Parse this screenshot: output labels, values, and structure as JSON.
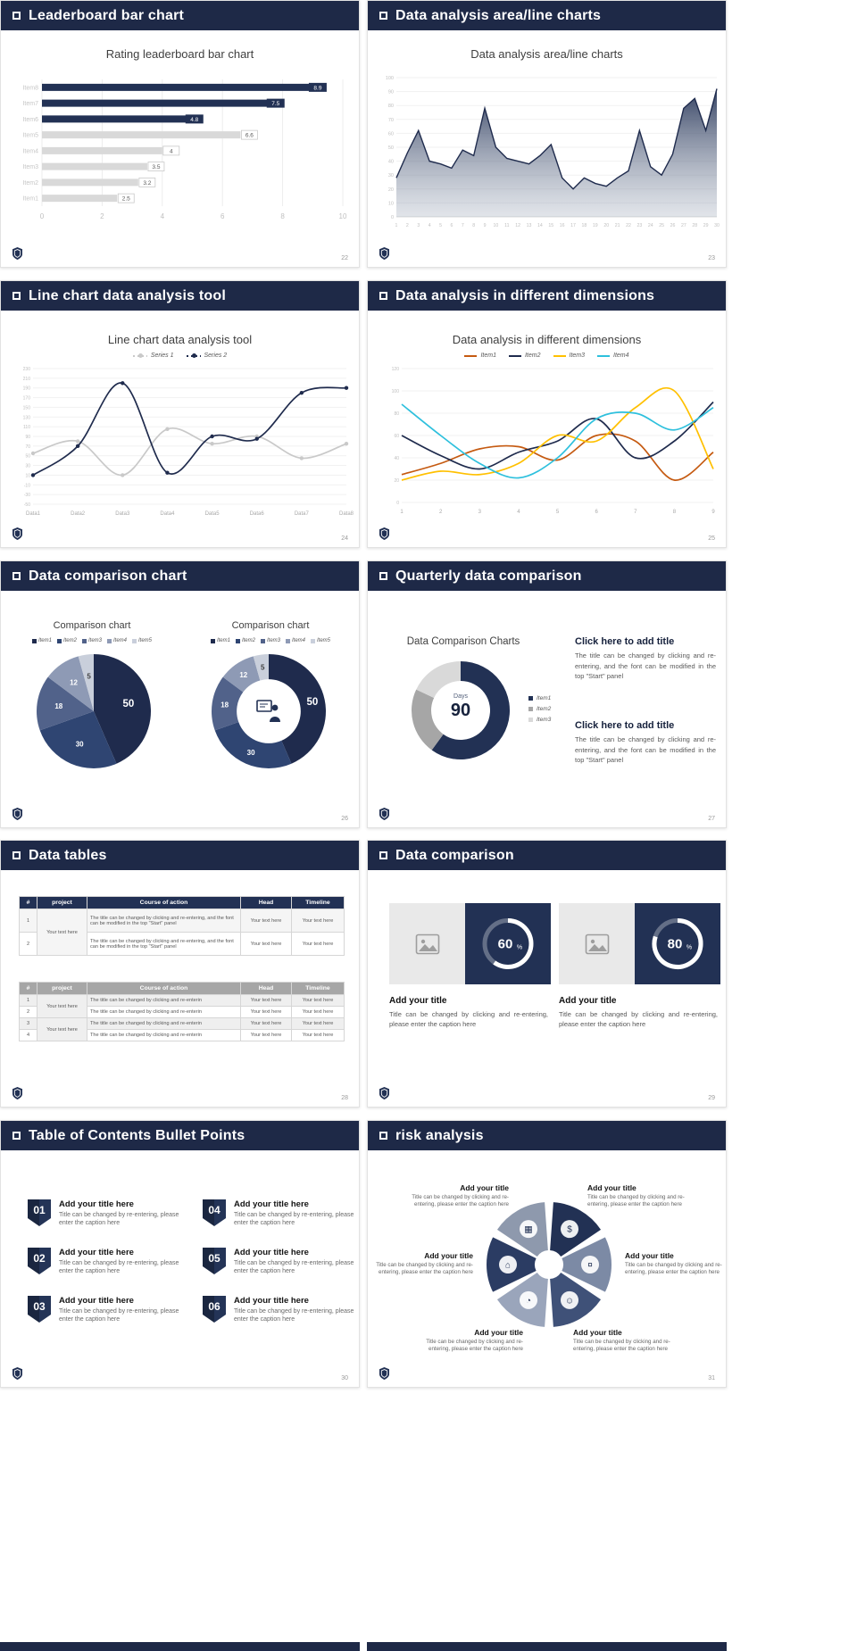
{
  "colors": {
    "header_navy": "#1e2947",
    "navy": "#223154",
    "gray_bar": "#d9d9d9"
  },
  "slides": [
    {
      "header": "Leaderboard bar chart",
      "page": "22",
      "title": "Rating leaderboard bar chart"
    },
    {
      "header": "Data analysis area/line charts",
      "page": "23",
      "title": "Data analysis area/line charts"
    },
    {
      "header": "Line chart data analysis tool",
      "page": "24",
      "title": "Line chart data analysis tool"
    },
    {
      "header": "Data analysis in different dimensions",
      "page": "25",
      "title": "Data analysis in different dimensions"
    },
    {
      "header": "Data comparison chart",
      "page": "26",
      "pie_title": "Comparison chart",
      "donut_title": "Comparison chart"
    },
    {
      "header": "Quarterly data comparison",
      "page": "27",
      "title": "Data Comparison Charts",
      "days_label": "Days",
      "days_value": "90",
      "blocks": [
        {
          "heading": "Click here to add title",
          "body": "The title can be changed by clicking and re-entering, and the font can be modified in the top \"Start\" panel"
        },
        {
          "heading": "Click here to add title",
          "body": "The title can be changed by clicking and re-entering, and the font can be modified in the top \"Start\" panel"
        }
      ]
    },
    {
      "header": "Data tables",
      "page": "28",
      "t1": {
        "headers": [
          "#",
          "project",
          "Course of action",
          "Head",
          "Timeline"
        ],
        "project": "Your text here",
        "rows": [
          {
            "num": "1",
            "course": "The title can be changed by clicking and re-entering, and the font can be modified in the top \"Start\" panel",
            "head": "Your text here",
            "timeline": "Your text here"
          },
          {
            "num": "2",
            "course": "The title can be changed by clicking and re-entering, and the font can be modified in the top \"Start\" panel",
            "head": "Your text here",
            "timeline": "Your text here"
          }
        ]
      },
      "t2": {
        "headers": [
          "#",
          "project",
          "Course of action",
          "Head",
          "Timeline"
        ],
        "projects": [
          "Your text here",
          "Your text here"
        ],
        "rows": [
          {
            "num": "1",
            "course": "The title can be changed by clicking and re-enterin",
            "head": "Your text here",
            "timeline": "Your text here"
          },
          {
            "num": "2",
            "course": "The title can be changed by clicking and re-enterin",
            "head": "Your text here",
            "timeline": "Your text here"
          },
          {
            "num": "3",
            "course": "The title can be changed by clicking and re-enterin",
            "head": "Your text here",
            "timeline": "Your text here"
          },
          {
            "num": "4",
            "course": "The title can be changed by clicking and re-enterin",
            "head": "Your text here",
            "timeline": "Your text here"
          }
        ]
      }
    },
    {
      "header": "Data comparison",
      "page": "29",
      "cards": [
        {
          "title": "Add your title",
          "caption": "Title can be changed by clicking and re-entering, please enter the caption here"
        },
        {
          "title": "Add your title",
          "caption": "Title can be changed by clicking and re-entering, please enter the caption here"
        }
      ]
    },
    {
      "header": "Table of Contents Bullet Points",
      "page": "30",
      "items": [
        {
          "num": "01",
          "title": "Add your title here",
          "caption": "Title can be changed by re-entering, please enter the caption here"
        },
        {
          "num": "02",
          "title": "Add your title here",
          "caption": "Title can be changed by re-entering, please enter the caption here"
        },
        {
          "num": "03",
          "title": "Add your title here",
          "caption": "Title can be changed by re-entering, please enter the caption here"
        },
        {
          "num": "04",
          "title": "Add your title here",
          "caption": "Title can be changed by re-entering, please enter the caption here"
        },
        {
          "num": "05",
          "title": "Add your title here",
          "caption": "Title can be changed by re-entering, please enter the caption here"
        },
        {
          "num": "06",
          "title": "Add your title here",
          "caption": "Title can be changed by re-entering, please enter the caption here"
        }
      ]
    },
    {
      "header": "risk analysis",
      "page": "31",
      "blocks": [
        {
          "title": "Add your title",
          "caption": "Title can be changed by clicking and re-entering, please enter the caption here"
        },
        {
          "title": "Add your title",
          "caption": "Title can be changed by clicking and re-entering, please enter the caption here"
        },
        {
          "title": "Add your title",
          "caption": "Title can be changed by clicking and re-entering, please enter the caption here"
        },
        {
          "title": "Add your title",
          "caption": "Title can be changed by clicking and re-entering, please enter the caption here"
        },
        {
          "title": "Add your title",
          "caption": "Title can be changed by clicking and re-entering, please enter the caption here"
        },
        {
          "title": "Add your title",
          "caption": "Title can be changed by clicking and re-entering, please enter the caption here"
        }
      ]
    }
  ],
  "chart_data": [
    {
      "id": "leaderboard",
      "type": "bar",
      "orientation": "horizontal",
      "title": "Rating leaderboard bar chart",
      "categories": [
        "Item8",
        "Item7",
        "Item6",
        "Item5",
        "Item4",
        "Item3",
        "Item2",
        "Item1"
      ],
      "values": [
        8.9,
        7.5,
        4.8,
        6.6,
        4,
        3.5,
        3.2,
        2.5
      ],
      "bar_styles": [
        "navy",
        "navy",
        "navy",
        "gray",
        "gray",
        "gray",
        "gray",
        "gray"
      ],
      "navy_color": "#223154",
      "gray_color": "#d9d9d9",
      "xlim": [
        0,
        10
      ],
      "xticks": [
        0,
        2,
        4,
        6,
        8,
        10
      ]
    },
    {
      "id": "area",
      "type": "area",
      "title": "Data analysis area/line charts",
      "x": [
        1,
        2,
        3,
        4,
        5,
        6,
        7,
        8,
        9,
        10,
        11,
        12,
        13,
        14,
        15,
        16,
        17,
        18,
        19,
        20,
        21,
        22,
        23,
        24,
        25,
        26,
        27,
        28,
        29,
        30
      ],
      "values": [
        28,
        46,
        62,
        40,
        38,
        35,
        48,
        44,
        78,
        50,
        42,
        40,
        38,
        44,
        52,
        28,
        20,
        28,
        24,
        22,
        28,
        33,
        62,
        36,
        30,
        45,
        78,
        85,
        62,
        92
      ],
      "ylim": [
        0,
        100
      ],
      "ytick_step": 10,
      "line_color": "#1f2b4d",
      "fill_top": "#223154",
      "fill_bottom": "#aab3c2"
    },
    {
      "id": "linetool",
      "type": "line",
      "title": "Line chart data analysis tool",
      "markers": true,
      "categories": [
        "Data1",
        "Data2",
        "Data3",
        "Data4",
        "Data5",
        "Data6",
        "Data7",
        "Data8"
      ],
      "ylim": [
        -50,
        230
      ],
      "ytick_step": 20,
      "series": [
        {
          "name": "Series 1",
          "color": "#c9c9c9",
          "values": [
            55,
            80,
            10,
            105,
            75,
            90,
            45,
            75
          ]
        },
        {
          "name": "Series 2",
          "color": "#1f2b4d",
          "values": [
            10,
            70,
            200,
            15,
            90,
            85,
            180,
            190
          ]
        }
      ]
    },
    {
      "id": "dimensions",
      "type": "line",
      "title": "Data analysis in different dimensions",
      "markers": false,
      "x": [
        1,
        2,
        3,
        4,
        5,
        6,
        7,
        8,
        9
      ],
      "ylim": [
        0,
        120
      ],
      "ytick_step": 20,
      "series": [
        {
          "name": "Item1",
          "color": "#c55a11",
          "values": [
            25,
            35,
            48,
            50,
            38,
            60,
            55,
            20,
            45
          ]
        },
        {
          "name": "Item2",
          "color": "#1f2b4d",
          "values": [
            60,
            42,
            30,
            45,
            55,
            75,
            40,
            55,
            90
          ]
        },
        {
          "name": "Item3",
          "color": "#ffc000",
          "values": [
            20,
            28,
            25,
            35,
            60,
            55,
            85,
            100,
            30
          ]
        },
        {
          "name": "Item4",
          "color": "#2ec0dd",
          "values": [
            88,
            60,
            35,
            22,
            40,
            75,
            80,
            65,
            85
          ]
        }
      ]
    },
    {
      "id": "pie5",
      "type": "pie",
      "title": "Comparison chart",
      "legend": [
        "Item1",
        "Item2",
        "Item3",
        "Item4",
        "Item5"
      ],
      "values": [
        50,
        30,
        18,
        12,
        5
      ],
      "colors": [
        "#1f2b4d",
        "#2f4572",
        "#51628a",
        "#8e9ab5",
        "#c9cfdb"
      ],
      "label_colors": [
        "#ffffff",
        "#ffffff",
        "#ffffff",
        "#ffffff",
        "#404040"
      ],
      "show_labels": true
    },
    {
      "id": "donut5",
      "type": "pie",
      "title": "Comparison chart",
      "legend": [
        "Item1",
        "Item2",
        "Item3",
        "Item4",
        "Item5"
      ],
      "values": [
        50,
        30,
        18,
        12,
        5
      ],
      "colors": [
        "#1f2b4d",
        "#2f4572",
        "#51628a",
        "#8e9ab5",
        "#c9cfdb"
      ],
      "label_colors": [
        "#ffffff",
        "#ffffff",
        "#ffffff",
        "#ffffff",
        "#404040"
      ],
      "inner": 0.56,
      "show_labels": true,
      "center_icon": true
    },
    {
      "id": "donut90",
      "type": "pie",
      "legend": [
        "Item1",
        "Item2",
        "Item3"
      ],
      "values": [
        60,
        22,
        18
      ],
      "colors": [
        "#223154",
        "#a6a6a6",
        "#d9d9d9"
      ],
      "inner": 0.6,
      "show_labels": false,
      "center_text": {
        "label": "Days",
        "value": "90"
      }
    },
    {
      "id": "ring60",
      "type": "ring",
      "percent": 60
    },
    {
      "id": "ring80",
      "type": "ring",
      "percent": 80
    },
    {
      "id": "pinwheel",
      "type": "pinwheel",
      "colors": [
        "#223154",
        "#7c8aa5",
        "#3f5178",
        "#9aa5bb",
        "#2b3c63",
        "#8e99ad"
      ],
      "icons": [
        "$",
        "¤",
        "☺",
        "◔",
        "⌂",
        "▦"
      ]
    }
  ]
}
